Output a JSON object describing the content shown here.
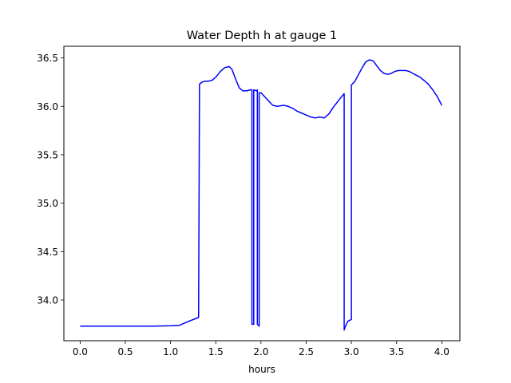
{
  "chart_data": {
    "type": "line",
    "title": "Water Depth h at gauge 1",
    "xlabel": "hours",
    "ylabel": "",
    "xlim": [
      -0.18,
      4.2
    ],
    "ylim": [
      33.58,
      36.62
    ],
    "xticks": [
      0.0,
      0.5,
      1.0,
      1.5,
      2.0,
      2.5,
      3.0,
      3.5,
      4.0
    ],
    "xtick_labels": [
      "0.0",
      "0.5",
      "1.0",
      "1.5",
      "2.0",
      "2.5",
      "3.0",
      "3.5",
      "4.0"
    ],
    "yticks": [
      34.0,
      34.5,
      35.0,
      35.5,
      36.0,
      36.5
    ],
    "ytick_labels": [
      "34.0",
      "34.5",
      "35.0",
      "35.5",
      "36.0",
      "36.5"
    ],
    "grid": false,
    "legend": "none",
    "series": [
      {
        "color": "#0000ff",
        "x": [
          0.0,
          0.5,
          0.8,
          1.0,
          1.1,
          1.2,
          1.31,
          1.32,
          1.35,
          1.38,
          1.42,
          1.46,
          1.5,
          1.55,
          1.6,
          1.65,
          1.68,
          1.72,
          1.76,
          1.8,
          1.84,
          1.88,
          1.9,
          1.9,
          1.92,
          1.92,
          1.95,
          1.96,
          1.96,
          1.98,
          1.98,
          2.0,
          2.03,
          2.08,
          2.13,
          2.18,
          2.25,
          2.3,
          2.35,
          2.4,
          2.45,
          2.5,
          2.55,
          2.6,
          2.65,
          2.7,
          2.75,
          2.8,
          2.85,
          2.9,
          2.92,
          2.92,
          2.93,
          2.93,
          2.96,
          3.0,
          3.0,
          3.04,
          3.08,
          3.12,
          3.16,
          3.2,
          3.24,
          3.28,
          3.32,
          3.36,
          3.4,
          3.44,
          3.48,
          3.52,
          3.56,
          3.6,
          3.64,
          3.68,
          3.72,
          3.76,
          3.8,
          3.85,
          3.9,
          3.95,
          4.0
        ],
        "y": [
          33.73,
          33.73,
          33.73,
          33.735,
          33.74,
          33.78,
          33.82,
          36.23,
          36.25,
          36.26,
          36.26,
          36.27,
          36.3,
          36.36,
          36.4,
          36.41,
          36.38,
          36.28,
          36.19,
          36.16,
          36.16,
          36.17,
          36.17,
          33.75,
          33.75,
          36.17,
          36.16,
          36.17,
          33.75,
          33.73,
          36.14,
          36.14,
          36.11,
          36.06,
          36.01,
          36.0,
          36.01,
          36.0,
          35.98,
          35.95,
          35.93,
          35.91,
          35.89,
          35.88,
          35.89,
          35.88,
          35.92,
          35.99,
          36.05,
          36.11,
          36.13,
          33.69,
          33.72,
          33.72,
          33.78,
          33.8,
          36.22,
          36.26,
          36.33,
          36.4,
          36.46,
          36.48,
          36.47,
          36.42,
          36.37,
          36.34,
          36.33,
          36.34,
          36.36,
          36.37,
          36.37,
          36.37,
          36.36,
          36.34,
          36.32,
          36.3,
          36.27,
          36.23,
          36.17,
          36.1,
          36.01
        ]
      }
    ]
  }
}
